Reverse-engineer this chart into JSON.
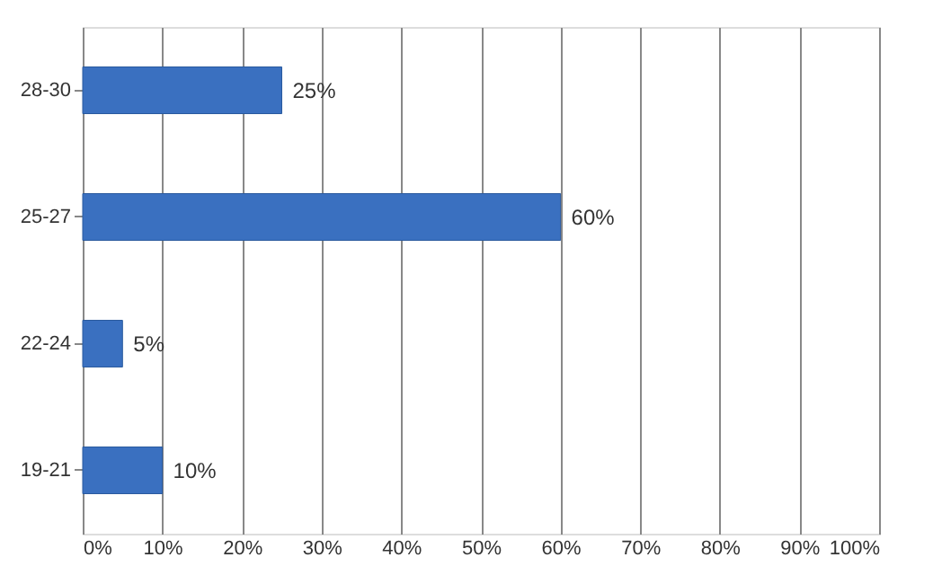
{
  "chart_data": {
    "type": "bar",
    "orientation": "horizontal",
    "categories": [
      "28-30",
      "25-27",
      "22-24",
      "19-21"
    ],
    "values": [
      25,
      60,
      5,
      10
    ],
    "color": "#3a70c0",
    "value_labels": [
      "25%",
      "60%",
      "5%",
      "10%"
    ],
    "xlim": [
      0,
      100
    ],
    "xticks": [
      {
        "value": 0,
        "label": "0%"
      },
      {
        "value": 10,
        "label": "10%"
      },
      {
        "value": 20,
        "label": "20%"
      },
      {
        "value": 30,
        "label": "30%"
      },
      {
        "value": 40,
        "label": "40%"
      },
      {
        "value": 50,
        "label": "50%"
      },
      {
        "value": 60,
        "label": "60%"
      },
      {
        "value": 70,
        "label": "70%"
      },
      {
        "value": 80,
        "label": "80%"
      },
      {
        "value": 90,
        "label": "90%"
      },
      {
        "value": 100,
        "label": "100%"
      }
    ],
    "grid": "x"
  }
}
